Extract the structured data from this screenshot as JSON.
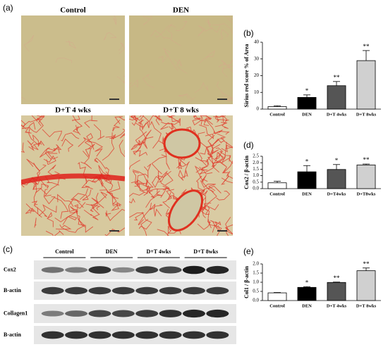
{
  "panel_labels": [
    "(a)",
    "(b)",
    "(c)",
    "(d)",
    "(e)"
  ],
  "histology": {
    "labels": [
      "Control",
      "DEN",
      "D+T 4 wks",
      "D+T 8 wks"
    ]
  },
  "blot": {
    "groups": [
      "Control",
      "DEN",
      "D+T 4wks",
      "D+T 8wks"
    ],
    "rows": [
      "Cox2",
      "B-actin",
      "Collagen1",
      "B-actin"
    ]
  },
  "chart_data": [
    {
      "type": "bar",
      "ylabel": "Sirius red score % of Area",
      "categories": [
        "Control",
        "DEN",
        "D+T 4wks",
        "D+T 8wks"
      ],
      "values": [
        1.5,
        7,
        14,
        29
      ],
      "errors": [
        0.5,
        1.5,
        2.5,
        6
      ],
      "significance": [
        null,
        "*",
        "**",
        "**"
      ],
      "colors": [
        "#ffffff",
        "#000000",
        "#555555",
        "#d0d0d0"
      ],
      "ylim": [
        0,
        40
      ],
      "yticks": [
        0,
        10,
        20,
        30,
        40
      ]
    },
    {
      "type": "bar",
      "ylabel": "Cox2 / β-actin",
      "categories": [
        "Control",
        "DEN",
        "D+T4wks",
        "D+T8wks"
      ],
      "values": [
        0.45,
        1.3,
        1.48,
        1.83
      ],
      "errors": [
        0.12,
        0.48,
        0.38,
        0.07
      ],
      "significance": [
        null,
        "*",
        "*",
        "**"
      ],
      "colors": [
        "#ffffff",
        "#000000",
        "#555555",
        "#d0d0d0"
      ],
      "ylim": [
        0,
        2.5
      ],
      "yticks": [
        {
          "value": 0,
          "label": "0.0"
        },
        0.5,
        {
          "value": 1,
          "label": "1.0"
        },
        1.5,
        {
          "value": 2,
          "label": "2.0"
        },
        2.5
      ]
    },
    {
      "type": "bar",
      "ylabel": "Col1 / β-actin",
      "categories": [
        "Control",
        "DEN",
        "D+T 4wks",
        "D+T 8wks"
      ],
      "values": [
        0.42,
        0.72,
        0.99,
        1.63
      ],
      "errors": [
        0.02,
        0.04,
        0.02,
        0.15
      ],
      "significance": [
        null,
        "*",
        "**",
        "**"
      ],
      "colors": [
        "#ffffff",
        "#000000",
        "#555555",
        "#d0d0d0"
      ],
      "ylim": [
        0,
        2
      ],
      "yticks": [
        {
          "value": 0,
          "label": "0.0"
        },
        0.5,
        {
          "value": 1,
          "label": "1.0"
        },
        1.5,
        {
          "value": 2,
          "label": "2.0"
        }
      ]
    }
  ]
}
